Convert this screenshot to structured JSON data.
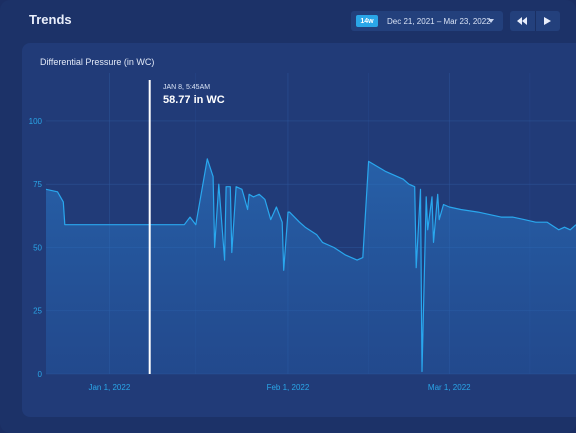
{
  "header": {
    "title": "Trends",
    "range_chip": "14w",
    "date_range": "Dec 21, 2021 – Mar 23, 2022"
  },
  "icons": {
    "dropdown": "chevron-down-icon",
    "back": "rewind-icon",
    "forward": "play-icon"
  },
  "panel": {
    "title": "Differential Pressure (in WC)"
  },
  "tooltip": {
    "time": "JAN 8, 5:45AM",
    "value": "58.77 in WC"
  },
  "colors": {
    "background": "#1c3268",
    "panel": "#213b78",
    "line": "#29a7ee",
    "accent": "#2aa6e8",
    "cursor": "#ffffff"
  },
  "chart_data": {
    "type": "area",
    "title": "Differential Pressure (in WC)",
    "xlabel": "",
    "ylabel": "",
    "ylim": [
      0,
      115
    ],
    "yticks": [
      0,
      25,
      50,
      75,
      100
    ],
    "x_ticks": [
      "Jan 1, 2022",
      "Feb 1, 2022",
      "Mar 1, 2022"
    ],
    "cursor": {
      "x": "2022-01-08",
      "value": 58.77
    },
    "series": [
      {
        "x": [
          "2021-12-21",
          "2021-12-23",
          "2021-12-24",
          "2021-12-24",
          "2022-01-14",
          "2022-01-15",
          "2022-01-16",
          "2022-01-18",
          "2022-01-19",
          "2022-01-19",
          "2022-01-20",
          "2022-01-21",
          "2022-01-21",
          "2022-01-22",
          "2022-01-22",
          "2022-01-23",
          "2022-01-24",
          "2022-01-24",
          "2022-01-25",
          "2022-01-25",
          "2022-01-26",
          "2022-01-27",
          "2022-01-28",
          "2022-01-29",
          "2022-01-30",
          "2022-01-31",
          "2022-01-31",
          "2022-02-01",
          "2022-02-01",
          "2022-02-03",
          "2022-02-04",
          "2022-02-06",
          "2022-02-07",
          "2022-02-09",
          "2022-02-11",
          "2022-02-13",
          "2022-02-14",
          "2022-02-15",
          "2022-02-18",
          "2022-02-21",
          "2022-02-22",
          "2022-02-23",
          "2022-02-23",
          "2022-02-24",
          "2022-02-24",
          "2022-02-25",
          "2022-02-25",
          "2022-02-26",
          "2022-02-26",
          "2022-02-27",
          "2022-02-27",
          "2022-02-28",
          "2022-03-01",
          "2022-03-03",
          "2022-03-06",
          "2022-03-08",
          "2022-03-10",
          "2022-03-12",
          "2022-03-14",
          "2022-03-16",
          "2022-03-18",
          "2022-03-20",
          "2022-03-21",
          "2022-03-22",
          "2022-03-23"
        ],
        "values": [
          73,
          72,
          68,
          59,
          59,
          62,
          59,
          85,
          78,
          50,
          75,
          45,
          74,
          74,
          48,
          74,
          73,
          71,
          65,
          71,
          70,
          71,
          69,
          61,
          66,
          60,
          41,
          64,
          64,
          60,
          58,
          55,
          52,
          50,
          47,
          45,
          46,
          84,
          80,
          77,
          75,
          74,
          42,
          73,
          1,
          70,
          57,
          70,
          52,
          71,
          61,
          67,
          66,
          65,
          64,
          63,
          62,
          62,
          61,
          60,
          60,
          57,
          58,
          57,
          59
        ]
      }
    ]
  }
}
